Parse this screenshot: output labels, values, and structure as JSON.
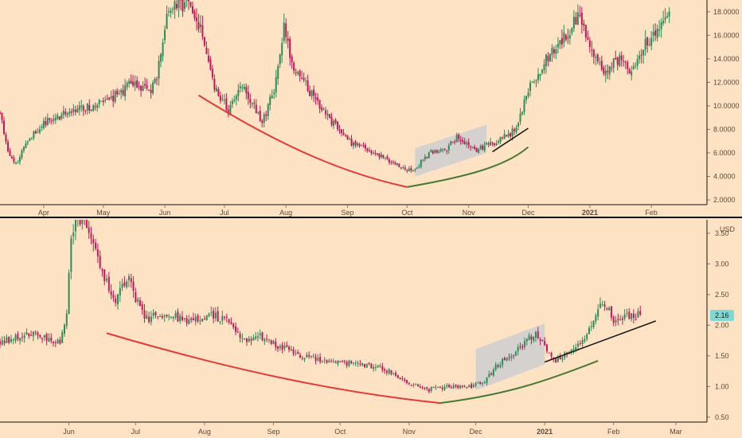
{
  "colors": {
    "background": "#fde2c4",
    "up": "#2e8b57",
    "down": "#c2185b",
    "curve_red": "#e53935",
    "curve_green": "#4a7a34",
    "trendline": "#1a1a1a",
    "channel_fill": "#c6cbd1",
    "grid_text": "#5b4a3a",
    "price_badge": "#7fd8d4"
  },
  "chart_data": [
    {
      "type": "candlestick",
      "panel": "top",
      "xlim": [
        "2020-03-10",
        "2021-03-01"
      ],
      "ylim": [
        1.6,
        19.0
      ],
      "x_ticks": [
        {
          "date": "2020-04-01",
          "label": "Apr"
        },
        {
          "date": "2020-05-01",
          "label": "May"
        },
        {
          "date": "2020-06-01",
          "label": "Jun"
        },
        {
          "date": "2020-07-01",
          "label": "Jul"
        },
        {
          "date": "2020-08-01",
          "label": "Aug"
        },
        {
          "date": "2020-09-01",
          "label": "Sep"
        },
        {
          "date": "2020-10-01",
          "label": "Oct"
        },
        {
          "date": "2020-11-01",
          "label": "Nov"
        },
        {
          "date": "2020-12-01",
          "label": "Dec"
        },
        {
          "date": "2021-01-01",
          "label": "2021"
        },
        {
          "date": "2021-02-01",
          "label": "Feb"
        }
      ],
      "y_ticks": [
        {
          "value": 2,
          "label": "2.0000"
        },
        {
          "value": 4,
          "label": "4.0000"
        },
        {
          "value": 6,
          "label": "6.0000"
        },
        {
          "value": 8,
          "label": "8.0000"
        },
        {
          "value": 10,
          "label": "10.0000"
        },
        {
          "value": 12,
          "label": "12.0000"
        },
        {
          "value": 14,
          "label": "14.0000"
        },
        {
          "value": 16,
          "label": "16.0000"
        },
        {
          "value": 18,
          "label": "18.0000"
        }
      ],
      "anchors": [
        [
          "2020-03-10",
          9.5
        ],
        [
          "2020-03-14",
          6.2
        ],
        [
          "2020-03-18",
          5.0
        ],
        [
          "2020-03-24",
          7.2
        ],
        [
          "2020-04-01",
          8.5
        ],
        [
          "2020-04-15",
          9.6
        ],
        [
          "2020-05-01",
          10.2
        ],
        [
          "2020-05-15",
          11.8
        ],
        [
          "2020-05-25",
          11.2
        ],
        [
          "2020-05-28",
          12.5
        ],
        [
          "2020-06-01",
          17.0
        ],
        [
          "2020-06-05",
          18.5
        ],
        [
          "2020-06-12",
          18.8
        ],
        [
          "2020-06-20",
          16.0
        ],
        [
          "2020-06-26",
          11.8
        ],
        [
          "2020-07-03",
          9.5
        ],
        [
          "2020-07-10",
          12.0
        ],
        [
          "2020-07-20",
          8.5
        ],
        [
          "2020-07-27",
          12.0
        ],
        [
          "2020-07-31",
          16.5
        ],
        [
          "2020-08-05",
          13.0
        ],
        [
          "2020-08-12",
          11.5
        ],
        [
          "2020-08-20",
          9.5
        ],
        [
          "2020-09-01",
          7.0
        ],
        [
          "2020-09-15",
          6.0
        ],
        [
          "2020-10-01",
          4.5
        ],
        [
          "2020-10-05",
          4.6
        ],
        [
          "2020-10-12",
          6.0
        ],
        [
          "2020-10-20",
          6.2
        ],
        [
          "2020-10-26",
          7.3
        ],
        [
          "2020-11-05",
          6.2
        ],
        [
          "2020-11-15",
          7.0
        ],
        [
          "2020-11-22",
          7.6
        ],
        [
          "2020-11-26",
          8.4
        ],
        [
          "2020-12-01",
          11.5
        ],
        [
          "2020-12-10",
          14.0
        ],
        [
          "2020-12-20",
          16.0
        ],
        [
          "2020-12-26",
          17.5
        ],
        [
          "2021-01-01",
          15.0
        ],
        [
          "2021-01-08",
          13.0
        ],
        [
          "2021-01-15",
          14.0
        ],
        [
          "2021-01-22",
          13.0
        ],
        [
          "2021-01-29",
          15.5
        ],
        [
          "2021-02-05",
          16.5
        ],
        [
          "2021-02-10",
          18.2
        ]
      ],
      "annotations": {
        "red_arc": [
          [
            "2020-06-18",
            10.9
          ],
          [
            "2020-08-01",
            6.3
          ],
          [
            "2020-09-01",
            4.2
          ],
          [
            "2020-10-01",
            3.1
          ]
        ],
        "green_arc": [
          [
            "2020-10-01",
            3.1
          ],
          [
            "2020-11-01",
            4.0
          ],
          [
            "2020-11-20",
            4.9
          ],
          [
            "2020-12-01",
            6.5
          ]
        ],
        "channel": [
          [
            "2020-10-05",
            4.0
          ],
          [
            "2020-10-05",
            6.4
          ],
          [
            "2020-11-10",
            8.4
          ],
          [
            "2020-11-10",
            6.0
          ]
        ],
        "trendline": [
          [
            "2020-11-13",
            6.1
          ],
          [
            "2020-12-01",
            8.1
          ]
        ]
      }
    },
    {
      "type": "candlestick",
      "panel": "bottom",
      "xlim": [
        "2020-05-01",
        "2021-03-15"
      ],
      "ylim": [
        0.42,
        3.72
      ],
      "unit_label": "USD",
      "last_price": 2.16,
      "last_price_label": "2.16",
      "x_ticks": [
        {
          "date": "2020-06-01",
          "label": "Jun"
        },
        {
          "date": "2020-07-01",
          "label": "Jul"
        },
        {
          "date": "2020-08-01",
          "label": "Aug"
        },
        {
          "date": "2020-09-01",
          "label": "Sep"
        },
        {
          "date": "2020-10-01",
          "label": "Oct"
        },
        {
          "date": "2020-11-01",
          "label": "Nov"
        },
        {
          "date": "2020-12-01",
          "label": "Dec"
        },
        {
          "date": "2021-01-01",
          "label": "2021"
        },
        {
          "date": "2021-02-01",
          "label": "Feb"
        },
        {
          "date": "2021-03-01",
          "label": "Mar"
        }
      ],
      "y_ticks": [
        {
          "value": 0.5,
          "label": "0.50"
        },
        {
          "value": 1.0,
          "label": "1.00"
        },
        {
          "value": 1.5,
          "label": "1.50"
        },
        {
          "value": 2.0,
          "label": "2.00"
        },
        {
          "value": 2.5,
          "label": "2.50"
        },
        {
          "value": 3.0,
          "label": "3.00"
        },
        {
          "value": 3.5,
          "label": "3.50"
        }
      ],
      "anchors": [
        [
          "2020-05-01",
          1.72
        ],
        [
          "2020-05-15",
          1.85
        ],
        [
          "2020-05-28",
          1.7
        ],
        [
          "2020-05-31",
          2.25
        ],
        [
          "2020-06-02",
          3.5
        ],
        [
          "2020-06-06",
          3.75
        ],
        [
          "2020-06-10",
          3.5
        ],
        [
          "2020-06-16",
          2.9
        ],
        [
          "2020-06-22",
          2.4
        ],
        [
          "2020-06-27",
          2.8
        ],
        [
          "2020-07-05",
          2.1
        ],
        [
          "2020-07-15",
          2.2
        ],
        [
          "2020-07-25",
          2.05
        ],
        [
          "2020-08-05",
          2.15
        ],
        [
          "2020-08-12",
          2.05
        ],
        [
          "2020-08-20",
          1.7
        ],
        [
          "2020-08-25",
          1.85
        ],
        [
          "2020-09-01",
          1.7
        ],
        [
          "2020-09-10",
          1.55
        ],
        [
          "2020-09-20",
          1.45
        ],
        [
          "2020-10-01",
          1.4
        ],
        [
          "2020-10-20",
          1.3
        ],
        [
          "2020-11-01",
          1.05
        ],
        [
          "2020-11-10",
          0.95
        ],
        [
          "2020-11-20",
          1.0
        ],
        [
          "2020-11-28",
          1.0
        ],
        [
          "2020-12-05",
          1.1
        ],
        [
          "2020-12-12",
          1.4
        ],
        [
          "2020-12-20",
          1.6
        ],
        [
          "2020-12-28",
          1.9
        ],
        [
          "2021-01-05",
          1.4
        ],
        [
          "2021-01-12",
          1.6
        ],
        [
          "2021-01-20",
          1.85
        ],
        [
          "2021-01-27",
          2.4
        ],
        [
          "2021-02-01",
          2.1
        ],
        [
          "2021-02-08",
          2.15
        ],
        [
          "2021-02-13",
          2.16
        ]
      ],
      "annotations": {
        "red_arc": [
          [
            "2020-06-18",
            1.87
          ],
          [
            "2020-08-15",
            1.25
          ],
          [
            "2020-10-01",
            0.9
          ],
          [
            "2020-11-15",
            0.73
          ]
        ],
        "green_arc": [
          [
            "2020-11-15",
            0.73
          ],
          [
            "2020-12-15",
            0.87
          ],
          [
            "2021-01-01",
            1.08
          ],
          [
            "2021-01-25",
            1.42
          ]
        ],
        "channel": [
          [
            "2020-12-01",
            0.94
          ],
          [
            "2020-12-01",
            1.61
          ],
          [
            "2021-01-01",
            2.03
          ],
          [
            "2021-01-01",
            1.36
          ]
        ],
        "trendline": [
          [
            "2021-01-01",
            1.4
          ],
          [
            "2021-02-20",
            2.07
          ]
        ]
      }
    }
  ]
}
